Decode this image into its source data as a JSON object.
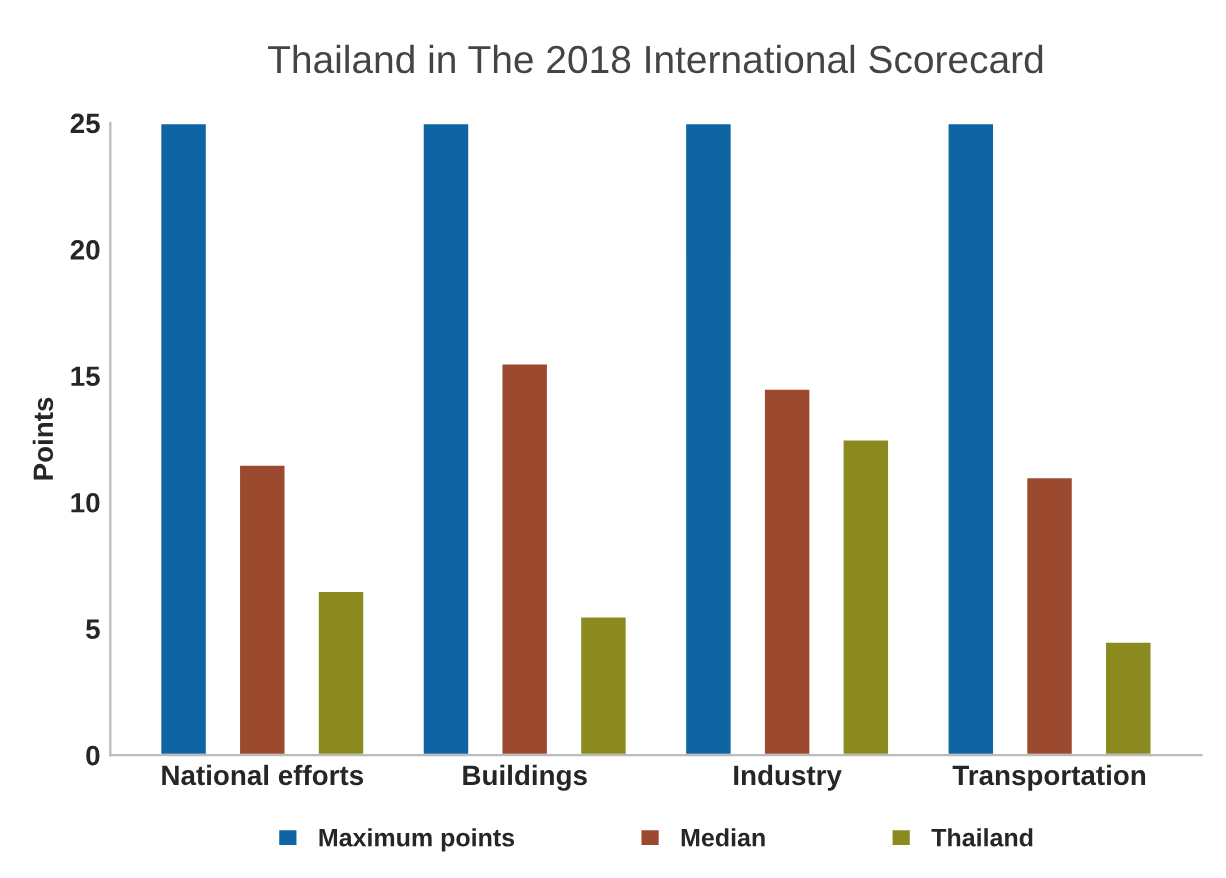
{
  "chart_data": {
    "type": "bar",
    "title": "Thailand in The 2018 International Scorecard",
    "ylabel": "Points",
    "categories": [
      "National efforts",
      "Buildings",
      "Industry",
      "Transportation"
    ],
    "series": [
      {
        "name": "Maximum points",
        "color": "#0f64a3",
        "values": [
          25,
          25,
          25,
          25
        ]
      },
      {
        "name": "Median",
        "color": "#9c4a2f",
        "values": [
          11.5,
          15.5,
          14.5,
          11
        ]
      },
      {
        "name": "Thailand",
        "color": "#8b8a1f",
        "values": [
          6.5,
          5.5,
          12.5,
          4.5
        ]
      }
    ],
    "ylim": [
      0,
      25
    ],
    "yticks": [
      0,
      5,
      10,
      15,
      20,
      25
    ],
    "grid": false,
    "legend": "bottom"
  }
}
